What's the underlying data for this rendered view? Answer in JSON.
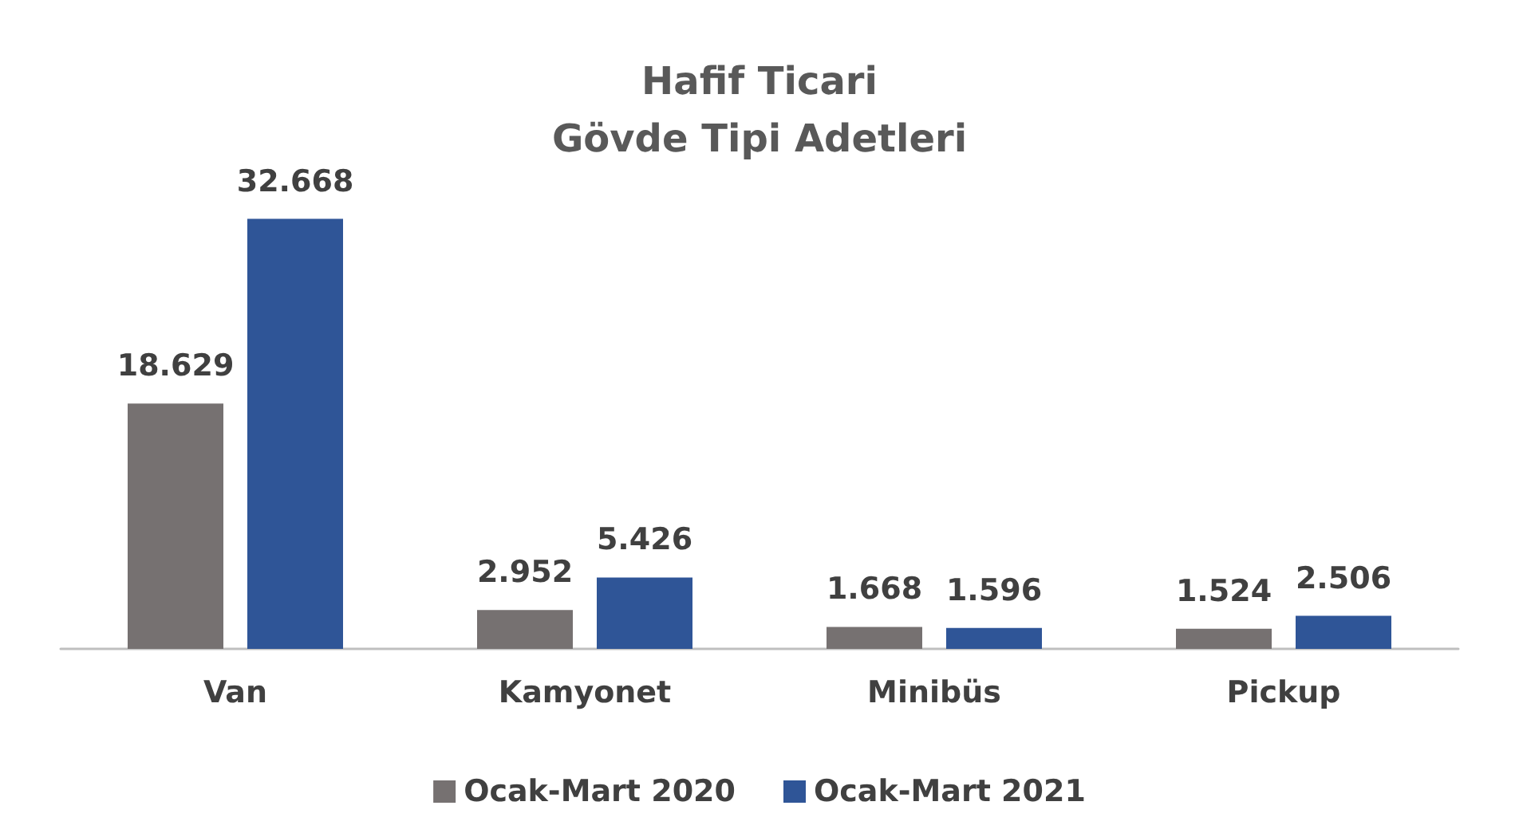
{
  "chart_data": {
    "type": "bar",
    "title": "Hafif Ticari\nGövde Tipi Adetleri",
    "categories": [
      "Van",
      "Kamyonet",
      "Minibüs",
      "Pickup"
    ],
    "series": [
      {
        "name": "Ocak-Mart 2020",
        "color": "#767171",
        "values": [
          18629,
          2952,
          1668,
          1524
        ],
        "value_labels": [
          "18.629",
          "2.952",
          "1.668",
          "1.524"
        ]
      },
      {
        "name": "Ocak-Mart 2021",
        "color": "#2f5597",
        "values": [
          32668,
          5426,
          1596,
          2506
        ],
        "value_labels": [
          "32.668",
          "5.426",
          "1.596",
          "2.506"
        ]
      }
    ],
    "legend": "bottom"
  }
}
